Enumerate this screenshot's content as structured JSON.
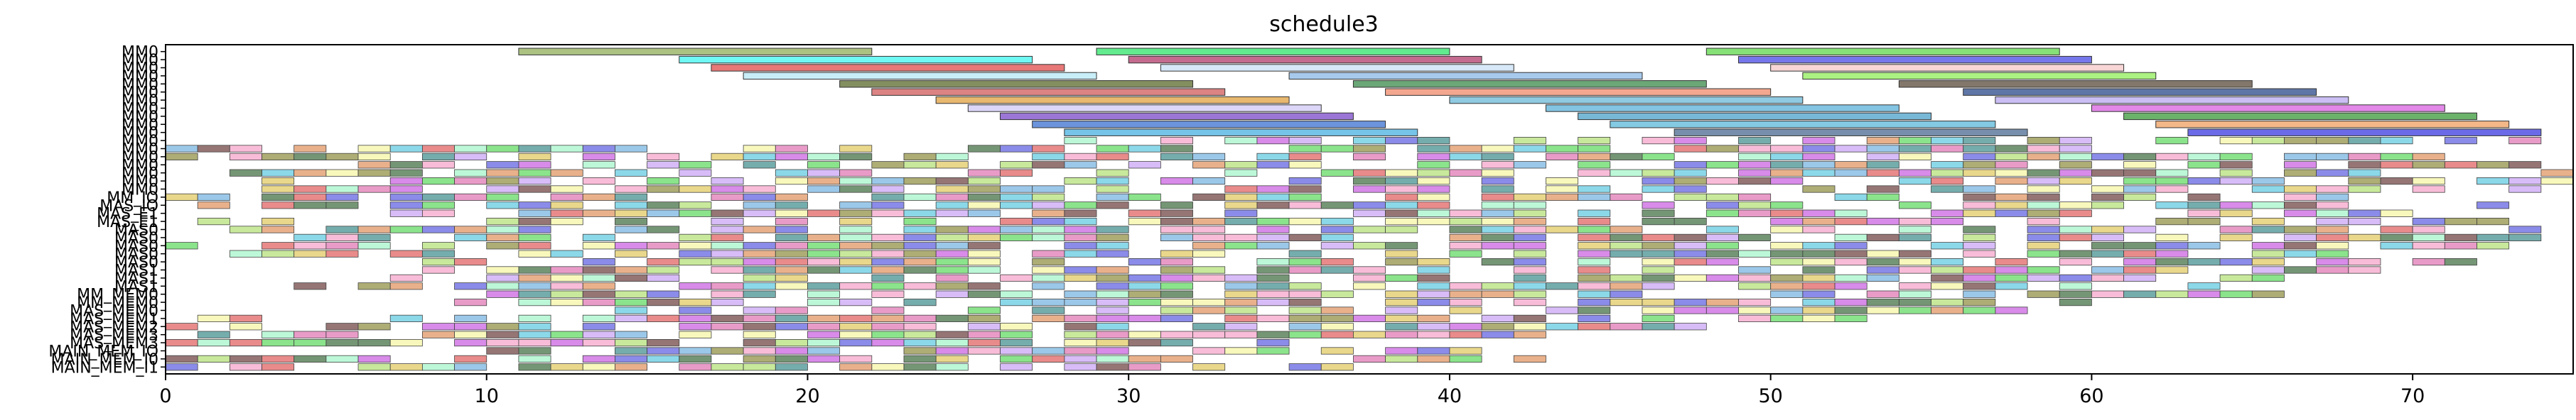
{
  "chart_data": {
    "type": "gantt",
    "title": "schedule3",
    "xlabel": "",
    "ylabel": "",
    "xlim": [
      0,
      75
    ],
    "x_ticks": [
      0,
      10,
      20,
      30,
      40,
      50,
      60,
      70
    ],
    "grid": false,
    "rows": [
      "MM0",
      "MM0",
      "MM0",
      "MM0",
      "MM0",
      "MM0",
      "MM0",
      "MM0",
      "MM0",
      "MM0",
      "MM0",
      "MM0",
      "MM0",
      "MM0",
      "MM0",
      "MM0",
      "MM0",
      "MM0",
      "MM_IO",
      "MAS_IO",
      "MAS_E1",
      "MAS_E1",
      "MAS0",
      "MAS0",
      "MAS0",
      "MAS0",
      "MAS0",
      "MAS1",
      "MAS1",
      "MAS1",
      "MM_MEM0",
      "MM_MEM0",
      "MAS_MEM0",
      "MAS_MEM1",
      "MAS_MEM2",
      "MAS_MEM3",
      "MAS_MEM3",
      "MAIN_MEM_IO",
      "MAIN_MEM_I0",
      "MAIN_MEM_I1"
    ],
    "bars": [
      {
        "row": 0,
        "start": 11,
        "end": 22,
        "color": "#8fae5a"
      },
      {
        "row": 0,
        "start": 29,
        "end": 40,
        "color": "#2ee66a"
      },
      {
        "row": 0,
        "start": 48,
        "end": 59,
        "color": "#5ed84a"
      },
      {
        "row": 1,
        "start": 16,
        "end": 27,
        "color": "#3ff5f0"
      },
      {
        "row": 1,
        "start": 30,
        "end": 41,
        "color": "#b03a6a"
      },
      {
        "row": 1,
        "start": 49,
        "end": 60,
        "color": "#4a4ae6"
      },
      {
        "row": 2,
        "start": 17,
        "end": 28,
        "color": "#e04a4a"
      },
      {
        "row": 2,
        "start": 31,
        "end": 42,
        "color": "#c9e0f5"
      },
      {
        "row": 2,
        "start": 50,
        "end": 61,
        "color": "#f5c8c8"
      },
      {
        "row": 3,
        "start": 18,
        "end": 29,
        "color": "#b5e8f5"
      },
      {
        "row": 3,
        "start": 35,
        "end": 46,
        "color": "#8ab8e6"
      },
      {
        "row": 3,
        "start": 51,
        "end": 62,
        "color": "#90ee5a"
      },
      {
        "row": 4,
        "start": 21,
        "end": 32,
        "color": "#5a6a2a"
      },
      {
        "row": 4,
        "start": 37,
        "end": 48,
        "color": "#3a8a4a"
      },
      {
        "row": 4,
        "start": 54,
        "end": 65,
        "color": "#5a4a3a"
      },
      {
        "row": 5,
        "start": 22,
        "end": 33,
        "color": "#d05a5a"
      },
      {
        "row": 5,
        "start": 38,
        "end": 50,
        "color": "#f08a6a"
      },
      {
        "row": 5,
        "start": 56,
        "end": 67,
        "color": "#2a4a8a"
      },
      {
        "row": 6,
        "start": 24,
        "end": 35,
        "color": "#e0a040"
      },
      {
        "row": 6,
        "start": 40,
        "end": 51,
        "color": "#6ab8d8"
      },
      {
        "row": 6,
        "start": 57,
        "end": 68,
        "color": "#b8a8f0"
      },
      {
        "row": 7,
        "start": 25,
        "end": 36,
        "color": "#d0c8f5"
      },
      {
        "row": 7,
        "start": 43,
        "end": 54,
        "color": "#5ab0d8"
      },
      {
        "row": 7,
        "start": 60,
        "end": 71,
        "color": "#d860e0"
      },
      {
        "row": 8,
        "start": 26,
        "end": 37,
        "color": "#7a48c8"
      },
      {
        "row": 8,
        "start": 44,
        "end": 55,
        "color": "#4aa0c8"
      },
      {
        "row": 8,
        "start": 61,
        "end": 72,
        "color": "#3a9a3a"
      },
      {
        "row": 9,
        "start": 27,
        "end": 38,
        "color": "#3a70d0"
      },
      {
        "row": 9,
        "start": 45,
        "end": 57,
        "color": "#5ab8d8"
      },
      {
        "row": 9,
        "start": 62,
        "end": 73,
        "color": "#f0a060"
      },
      {
        "row": 10,
        "start": 28,
        "end": 39,
        "color": "#48b0e0"
      },
      {
        "row": 10,
        "start": 47,
        "end": 58,
        "color": "#4a6a90"
      },
      {
        "row": 10,
        "start": 63,
        "end": 74,
        "color": "#3a3ae0"
      }
    ],
    "dense_rows_note": ""
  }
}
